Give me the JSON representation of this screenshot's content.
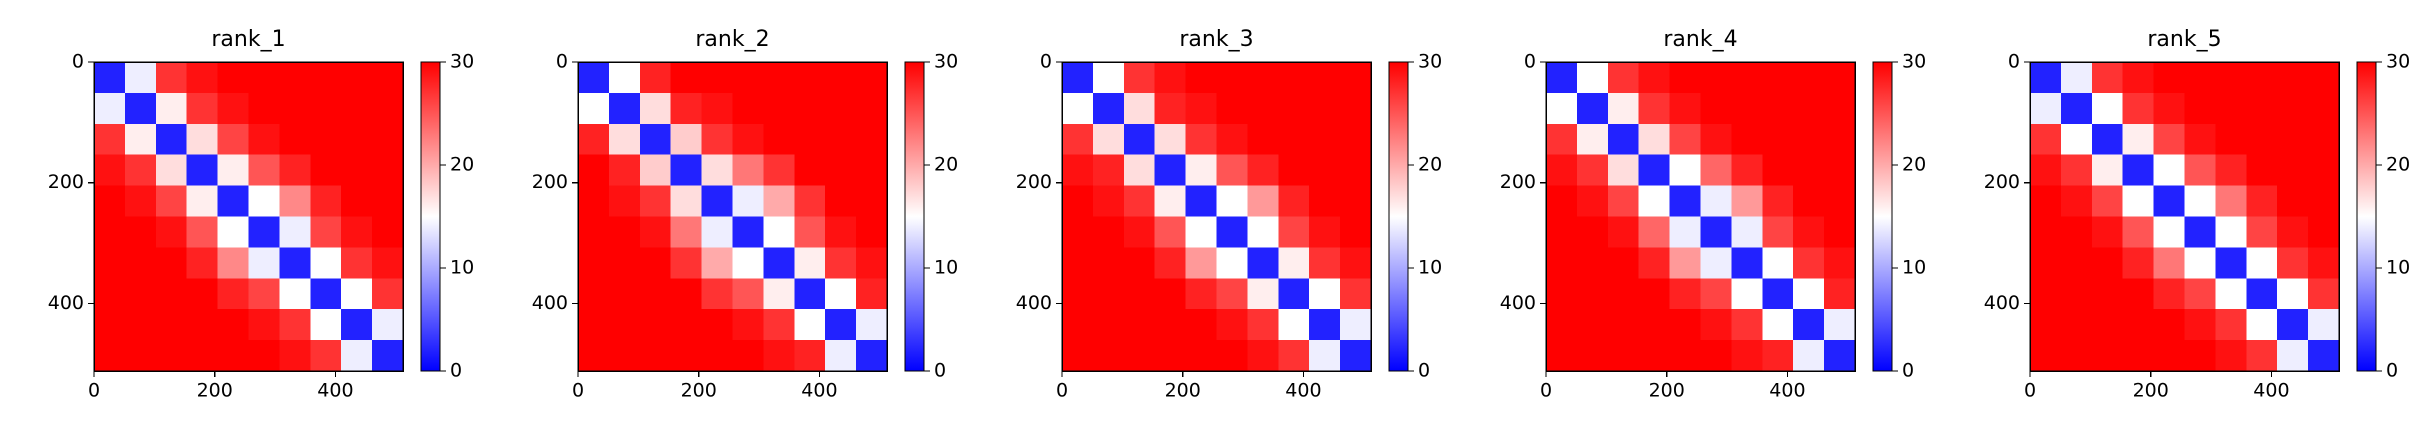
{
  "chart_data": [
    {
      "type": "heatmap",
      "title": "rank_1",
      "xlim": [
        0,
        512
      ],
      "ylim": [
        512,
        0
      ],
      "xticks": [
        0,
        200,
        400
      ],
      "yticks": [
        0,
        200,
        400
      ],
      "z": [
        [
          2,
          14,
          27,
          29,
          30,
          30,
          30,
          30,
          30,
          30
        ],
        [
          14,
          2,
          16,
          27,
          29,
          30,
          30,
          30,
          30,
          30
        ],
        [
          27,
          16,
          2,
          17,
          26,
          29,
          30,
          30,
          30,
          30
        ],
        [
          29,
          27,
          17,
          2,
          16,
          25,
          28,
          30,
          30,
          30
        ],
        [
          30,
          29,
          26,
          16,
          2,
          15,
          22,
          28,
          30,
          30
        ],
        [
          30,
          30,
          29,
          25,
          15,
          2,
          14,
          26,
          29,
          30
        ],
        [
          30,
          30,
          30,
          28,
          22,
          14,
          2,
          15,
          27,
          29
        ],
        [
          30,
          30,
          30,
          30,
          28,
          26,
          15,
          2,
          15,
          27
        ],
        [
          30,
          30,
          30,
          30,
          30,
          29,
          27,
          15,
          2,
          14
        ],
        [
          30,
          30,
          30,
          30,
          30,
          30,
          29,
          27,
          14,
          2
        ]
      ],
      "colorbar": {
        "lim": [
          0,
          30
        ],
        "ticks": [
          0,
          10,
          20,
          30
        ],
        "colors": [
          "#0000ff",
          "#ffffff",
          "#ff0000"
        ]
      }
    },
    {
      "type": "heatmap",
      "title": "rank_2",
      "xlim": [
        0,
        512
      ],
      "ylim": [
        512,
        0
      ],
      "xticks": [
        0,
        200,
        400
      ],
      "yticks": [
        0,
        200,
        400
      ],
      "z": [
        [
          2,
          15,
          28,
          30,
          30,
          30,
          30,
          30,
          30,
          30
        ],
        [
          15,
          2,
          17,
          28,
          29,
          30,
          30,
          30,
          30,
          30
        ],
        [
          28,
          17,
          2,
          18,
          27,
          29,
          30,
          30,
          30,
          30
        ],
        [
          30,
          28,
          18,
          2,
          17,
          23,
          27,
          30,
          30,
          30
        ],
        [
          30,
          29,
          27,
          17,
          2,
          14,
          20,
          27,
          30,
          30
        ],
        [
          30,
          30,
          29,
          23,
          14,
          2,
          15,
          25,
          29,
          30
        ],
        [
          30,
          30,
          30,
          27,
          20,
          15,
          2,
          16,
          27,
          29
        ],
        [
          30,
          30,
          30,
          30,
          27,
          25,
          16,
          2,
          15,
          28
        ],
        [
          30,
          30,
          30,
          30,
          30,
          29,
          27,
          15,
          2,
          14
        ],
        [
          30,
          30,
          30,
          30,
          30,
          30,
          29,
          28,
          14,
          2
        ]
      ],
      "colorbar": {
        "lim": [
          0,
          30
        ],
        "ticks": [
          0,
          10,
          20,
          30
        ],
        "colors": [
          "#0000ff",
          "#ffffff",
          "#ff0000"
        ]
      }
    },
    {
      "type": "heatmap",
      "title": "rank_3",
      "xlim": [
        0,
        512
      ],
      "ylim": [
        512,
        0
      ],
      "xticks": [
        0,
        200,
        400
      ],
      "yticks": [
        0,
        200,
        400
      ],
      "z": [
        [
          2,
          15,
          27,
          29,
          30,
          30,
          30,
          30,
          30,
          30
        ],
        [
          15,
          2,
          17,
          28,
          29,
          30,
          30,
          30,
          30,
          30
        ],
        [
          27,
          17,
          2,
          17,
          27,
          29,
          30,
          30,
          30,
          30
        ],
        [
          29,
          28,
          17,
          2,
          16,
          25,
          28,
          30,
          30,
          30
        ],
        [
          30,
          29,
          27,
          16,
          2,
          15,
          21,
          28,
          30,
          30
        ],
        [
          30,
          30,
          29,
          25,
          15,
          2,
          15,
          26,
          29,
          30
        ],
        [
          30,
          30,
          30,
          28,
          21,
          15,
          2,
          16,
          27,
          29
        ],
        [
          30,
          30,
          30,
          30,
          28,
          26,
          16,
          2,
          15,
          27
        ],
        [
          30,
          30,
          30,
          30,
          30,
          29,
          27,
          15,
          2,
          14
        ],
        [
          30,
          30,
          30,
          30,
          30,
          30,
          29,
          27,
          14,
          2
        ]
      ],
      "colorbar": {
        "lim": [
          0,
          30
        ],
        "ticks": [
          0,
          10,
          20,
          30
        ],
        "colors": [
          "#0000ff",
          "#ffffff",
          "#ff0000"
        ]
      }
    },
    {
      "type": "heatmap",
      "title": "rank_4",
      "xlim": [
        0,
        512
      ],
      "ylim": [
        512,
        0
      ],
      "xticks": [
        0,
        200,
        400
      ],
      "yticks": [
        0,
        200,
        400
      ],
      "z": [
        [
          2,
          15,
          27,
          29,
          30,
          30,
          30,
          30,
          30,
          30
        ],
        [
          15,
          2,
          16,
          27,
          29,
          30,
          30,
          30,
          30,
          30
        ],
        [
          27,
          16,
          2,
          17,
          26,
          29,
          30,
          30,
          30,
          30
        ],
        [
          29,
          27,
          17,
          2,
          15,
          24,
          28,
          30,
          30,
          30
        ],
        [
          30,
          29,
          26,
          15,
          2,
          14,
          21,
          28,
          30,
          30
        ],
        [
          30,
          30,
          29,
          24,
          14,
          2,
          14,
          26,
          29,
          30
        ],
        [
          30,
          30,
          30,
          28,
          21,
          14,
          2,
          15,
          27,
          29
        ],
        [
          30,
          30,
          30,
          30,
          28,
          26,
          15,
          2,
          15,
          28
        ],
        [
          30,
          30,
          30,
          30,
          30,
          29,
          27,
          15,
          2,
          14
        ],
        [
          30,
          30,
          30,
          30,
          30,
          30,
          29,
          28,
          14,
          2
        ]
      ],
      "colorbar": {
        "lim": [
          0,
          30
        ],
        "ticks": [
          0,
          10,
          20,
          30
        ],
        "colors": [
          "#0000ff",
          "#ffffff",
          "#ff0000"
        ]
      }
    },
    {
      "type": "heatmap",
      "title": "rank_5",
      "xlim": [
        0,
        512
      ],
      "ylim": [
        512,
        0
      ],
      "xticks": [
        0,
        200,
        400
      ],
      "yticks": [
        0,
        200,
        400
      ],
      "z": [
        [
          2,
          14,
          27,
          29,
          30,
          30,
          30,
          30,
          30,
          30
        ],
        [
          14,
          2,
          15,
          27,
          29,
          30,
          30,
          30,
          30,
          30
        ],
        [
          27,
          15,
          2,
          16,
          26,
          29,
          30,
          30,
          30,
          30
        ],
        [
          29,
          27,
          16,
          2,
          15,
          25,
          28,
          30,
          30,
          30
        ],
        [
          30,
          29,
          26,
          15,
          2,
          15,
          23,
          28,
          30,
          30
        ],
        [
          30,
          30,
          29,
          25,
          15,
          2,
          15,
          26,
          29,
          30
        ],
        [
          30,
          30,
          30,
          28,
          23,
          15,
          2,
          15,
          27,
          29
        ],
        [
          30,
          30,
          30,
          30,
          28,
          26,
          15,
          2,
          15,
          27
        ],
        [
          30,
          30,
          30,
          30,
          30,
          29,
          27,
          15,
          2,
          14
        ],
        [
          30,
          30,
          30,
          30,
          30,
          30,
          29,
          27,
          14,
          2
        ]
      ],
      "colorbar": {
        "lim": [
          0,
          30
        ],
        "ticks": [
          0,
          10,
          20,
          30
        ],
        "colors": [
          "#0000ff",
          "#ffffff",
          "#ff0000"
        ]
      }
    }
  ]
}
